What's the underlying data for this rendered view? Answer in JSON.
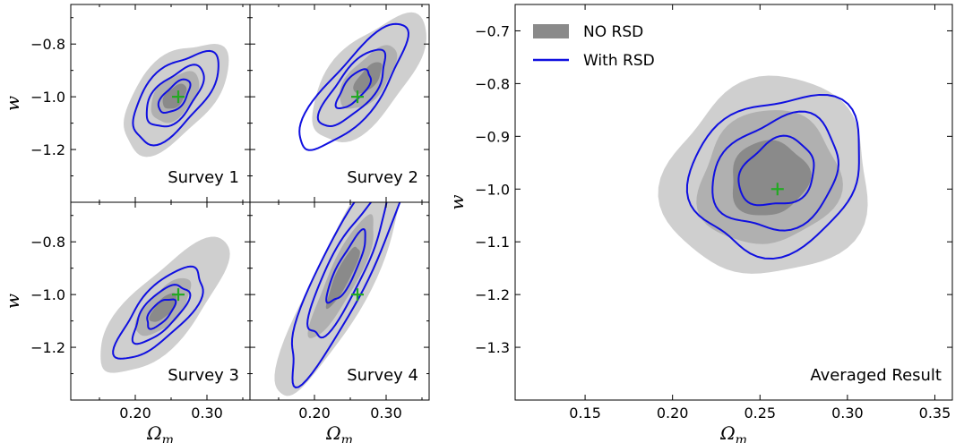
{
  "colors": {
    "fill_outer": "#cfcfcf",
    "fill_mid": "#b0b0b0",
    "fill_inner": "#8a8a8a",
    "contour": "#1010e0",
    "fiducial": "#22aa22"
  },
  "legend": {
    "placement": "top-left",
    "entries": [
      {
        "label": "NO RSD",
        "style": "filled",
        "color": "#8a8a8a"
      },
      {
        "label": "With RSD",
        "style": "line",
        "color": "#1010e0"
      }
    ]
  },
  "chart_data": [
    {
      "type": "contour",
      "panel": "survey-1",
      "label": "Survey 1",
      "xlabel": "",
      "ylabel": "w",
      "xlim": [
        0.11,
        0.36
      ],
      "ylim": [
        -1.4,
        -0.65
      ],
      "xticks": [],
      "yticks": [
        "−0.8",
        "−1.0",
        "−1.2"
      ],
      "fiducial": {
        "x": 0.26,
        "y": -1.0
      },
      "no_rsd": {
        "center": [
          0.255,
          -1.0
        ],
        "major": [
          0.18,
          0.08,
          0.04
        ],
        "minor": [
          0.05,
          0.025,
          0.012
        ],
        "slope": 3.0
      },
      "with_rsd": {
        "center": [
          0.255,
          -1.0
        ],
        "major": [
          0.15,
          0.1,
          0.055
        ],
        "minor": [
          0.038,
          0.026,
          0.014
        ],
        "slope": 3.0
      }
    },
    {
      "type": "contour",
      "panel": "survey-2",
      "label": "Survey 2",
      "xlabel": "",
      "ylabel": "",
      "xlim": [
        0.11,
        0.36
      ],
      "ylim": [
        -1.4,
        -0.65
      ],
      "xticks": [],
      "yticks": [],
      "fiducial": {
        "x": 0.26,
        "y": -1.0
      },
      "no_rsd": {
        "center": [
          0.275,
          -0.93
        ],
        "major": [
          0.2,
          0.1,
          0.05
        ],
        "minor": [
          0.05,
          0.025,
          0.012
        ],
        "slope": 3.2
      },
      "with_rsd": {
        "center": [
          0.255,
          -0.97
        ],
        "major": [
          0.2,
          0.12,
          0.06
        ],
        "minor": [
          0.035,
          0.025,
          0.014
        ],
        "slope": 3.3
      }
    },
    {
      "type": "contour",
      "panel": "survey-3",
      "label": "Survey 3",
      "xlabel": "Ωm",
      "ylabel": "w",
      "xlim": [
        0.11,
        0.36
      ],
      "ylim": [
        -1.4,
        -0.65
      ],
      "xticks": [
        "0.20",
        "0.30"
      ],
      "yticks": [
        "−0.8",
        "−1.0",
        "−1.2"
      ],
      "fiducial": {
        "x": 0.26,
        "y": -1.0
      },
      "no_rsd": {
        "center": [
          0.24,
          -1.05
        ],
        "major": [
          0.24,
          0.1,
          0.05
        ],
        "minor": [
          0.045,
          0.022,
          0.011
        ],
        "slope": 2.9
      },
      "with_rsd": {
        "center": [
          0.235,
          -1.07
        ],
        "major": [
          0.16,
          0.1,
          0.05
        ],
        "minor": [
          0.032,
          0.022,
          0.012
        ],
        "slope": 2.9
      }
    },
    {
      "type": "contour",
      "panel": "survey-4",
      "label": "Survey 4",
      "xlabel": "Ωm",
      "ylabel": "",
      "xlim": [
        0.11,
        0.36
      ],
      "ylim": [
        -1.4,
        -0.65
      ],
      "xticks": [
        "0.20",
        "0.30"
      ],
      "yticks": [],
      "fiducial": {
        "x": 0.26,
        "y": -1.0
      },
      "no_rsd": {
        "center": [
          0.24,
          -0.93
        ],
        "major": [
          0.24,
          0.12,
          0.06
        ],
        "minor": [
          0.04,
          0.02,
          0.01
        ],
        "slope": 5.5
      },
      "with_rsd": {
        "center": [
          0.245,
          -0.9
        ],
        "major": [
          0.22,
          0.14,
          0.07
        ],
        "minor": [
          0.035,
          0.025,
          0.013
        ],
        "slope": 5.5
      }
    },
    {
      "type": "contour",
      "panel": "averaged",
      "label": "Averaged Result",
      "xlabel": "Ωm",
      "ylabel": "w",
      "xlim": [
        0.11,
        0.36
      ],
      "ylim": [
        -1.4,
        -0.65
      ],
      "xticks": [
        "0.15",
        "0.20",
        "0.25",
        "0.30",
        "0.35"
      ],
      "yticks": [
        "−0.7",
        "−0.8",
        "−0.9",
        "−1.0",
        "−1.1",
        "−1.2",
        "−1.3"
      ],
      "fiducial": {
        "x": 0.26,
        "y": -1.0
      },
      "no_rsd": {
        "center": [
          0.255,
          -0.98
        ],
        "major": [
          0.145,
          0.1,
          0.055
        ],
        "minor": [
          0.055,
          0.037,
          0.021
        ],
        "slope": 2.1
      },
      "with_rsd": {
        "center": [
          0.26,
          -0.97
        ],
        "major": [
          0.125,
          0.092,
          0.055
        ],
        "minor": [
          0.042,
          0.03,
          0.018
        ],
        "slope": 2.1
      }
    }
  ]
}
